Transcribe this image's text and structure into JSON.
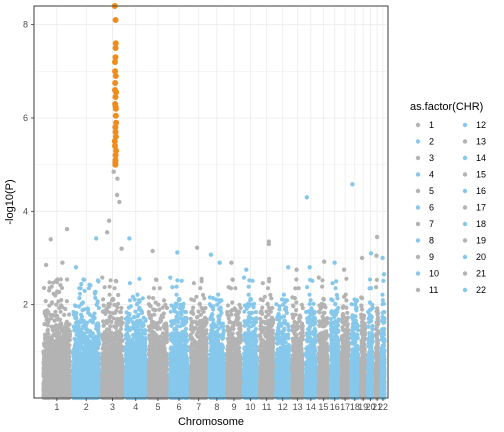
{
  "chart_data": {
    "type": "scatter",
    "title": "",
    "xlabel": "Chromosome",
    "ylabel": "-log10(P)",
    "ylim": [
      0,
      8.4
    ],
    "y_ticks": [
      2,
      4,
      6,
      8
    ],
    "grid": true,
    "legend": {
      "title": "as.factor(CHR)",
      "position": "right",
      "entries": [
        "1",
        "2",
        "3",
        "4",
        "5",
        "6",
        "7",
        "8",
        "9",
        "10",
        "11",
        "12",
        "13",
        "14",
        "15",
        "16",
        "17",
        "18",
        "19",
        "20",
        "21",
        "22"
      ]
    },
    "colors": {
      "grey": "#b3b3b3",
      "blue": "#86c8eb",
      "highlight": "#f08c1a"
    },
    "chromosomes": [
      {
        "chr": "1",
        "label": "1",
        "color": "grey"
      },
      {
        "chr": "2",
        "label": "2",
        "color": "blue"
      },
      {
        "chr": "3",
        "label": "3",
        "color": "grey"
      },
      {
        "chr": "4",
        "label": "4",
        "color": "blue"
      },
      {
        "chr": "5",
        "label": "5",
        "color": "grey"
      },
      {
        "chr": "6",
        "label": "6",
        "color": "blue"
      },
      {
        "chr": "7",
        "label": "7",
        "color": "grey"
      },
      {
        "chr": "8",
        "label": "8",
        "color": "blue"
      },
      {
        "chr": "9",
        "label": "9",
        "color": "grey"
      },
      {
        "chr": "10",
        "label": "10",
        "color": "blue"
      },
      {
        "chr": "11",
        "label": "11",
        "color": "grey"
      },
      {
        "chr": "12",
        "label": "12",
        "color": "blue"
      },
      {
        "chr": "13",
        "label": "13",
        "color": "grey"
      },
      {
        "chr": "14",
        "label": "14",
        "color": "blue"
      },
      {
        "chr": "15",
        "label": "15",
        "color": "grey"
      },
      {
        "chr": "16",
        "label": "16",
        "color": "blue"
      },
      {
        "chr": "17",
        "label": "17",
        "color": "grey"
      },
      {
        "chr": "18",
        "label": "18",
        "color": "blue"
      },
      {
        "chr": "19",
        "label": "19",
        "color": "grey"
      },
      {
        "chr": "20",
        "label": "20",
        "color": "blue"
      },
      {
        "chr": "21",
        "label": "21",
        "color": "grey"
      },
      {
        "chr": "22",
        "label": "22",
        "color": "blue"
      }
    ],
    "notable_points": [
      {
        "chr": "1",
        "y": 3.62
      },
      {
        "chr": "1",
        "y": 3.4
      },
      {
        "chr": "1",
        "y": 2.9
      },
      {
        "chr": "1",
        "y": 2.85
      },
      {
        "chr": "2",
        "y": 3.42
      },
      {
        "chr": "2",
        "y": 2.8
      },
      {
        "chr": "3",
        "y": 4.85
      },
      {
        "chr": "3",
        "y": 4.7
      },
      {
        "chr": "3",
        "y": 4.35
      },
      {
        "chr": "3",
        "y": 4.2
      },
      {
        "chr": "3",
        "y": 3.8
      },
      {
        "chr": "3",
        "y": 3.55
      },
      {
        "chr": "3",
        "y": 3.2
      },
      {
        "chr": "4",
        "y": 3.42
      },
      {
        "chr": "5",
        "y": 3.15
      },
      {
        "chr": "6",
        "y": 3.12
      },
      {
        "chr": "7",
        "y": 3.22
      },
      {
        "chr": "8",
        "y": 3.07
      },
      {
        "chr": "8",
        "y": 2.9
      },
      {
        "chr": "9",
        "y": 2.9
      },
      {
        "chr": "10",
        "y": 2.75
      },
      {
        "chr": "11",
        "y": 3.35
      },
      {
        "chr": "11",
        "y": 3.3
      },
      {
        "chr": "12",
        "y": 2.8
      },
      {
        "chr": "13",
        "y": 2.75
      },
      {
        "chr": "14",
        "y": 4.3
      },
      {
        "chr": "14",
        "y": 2.8
      },
      {
        "chr": "15",
        "y": 2.92
      },
      {
        "chr": "16",
        "y": 2.9
      },
      {
        "chr": "17",
        "y": 2.75
      },
      {
        "chr": "18",
        "y": 4.58
      },
      {
        "chr": "19",
        "y": 3.0
      },
      {
        "chr": "20",
        "y": 3.1
      },
      {
        "chr": "21",
        "y": 3.45
      },
      {
        "chr": "21",
        "y": 3.05
      },
      {
        "chr": "22",
        "y": 3.0
      },
      {
        "chr": "22",
        "y": 2.65
      }
    ],
    "highlight_points": {
      "chr": "3",
      "y": [
        8.4,
        8.1,
        7.6,
        7.5,
        7.3,
        7.2,
        7.0,
        6.9,
        6.75,
        6.6,
        6.55,
        6.45,
        6.3,
        6.25,
        6.2,
        6.05,
        5.9,
        5.8,
        5.7,
        5.6,
        5.5,
        5.4,
        5.3,
        5.2,
        5.1,
        5.05,
        5.0
      ]
    }
  }
}
